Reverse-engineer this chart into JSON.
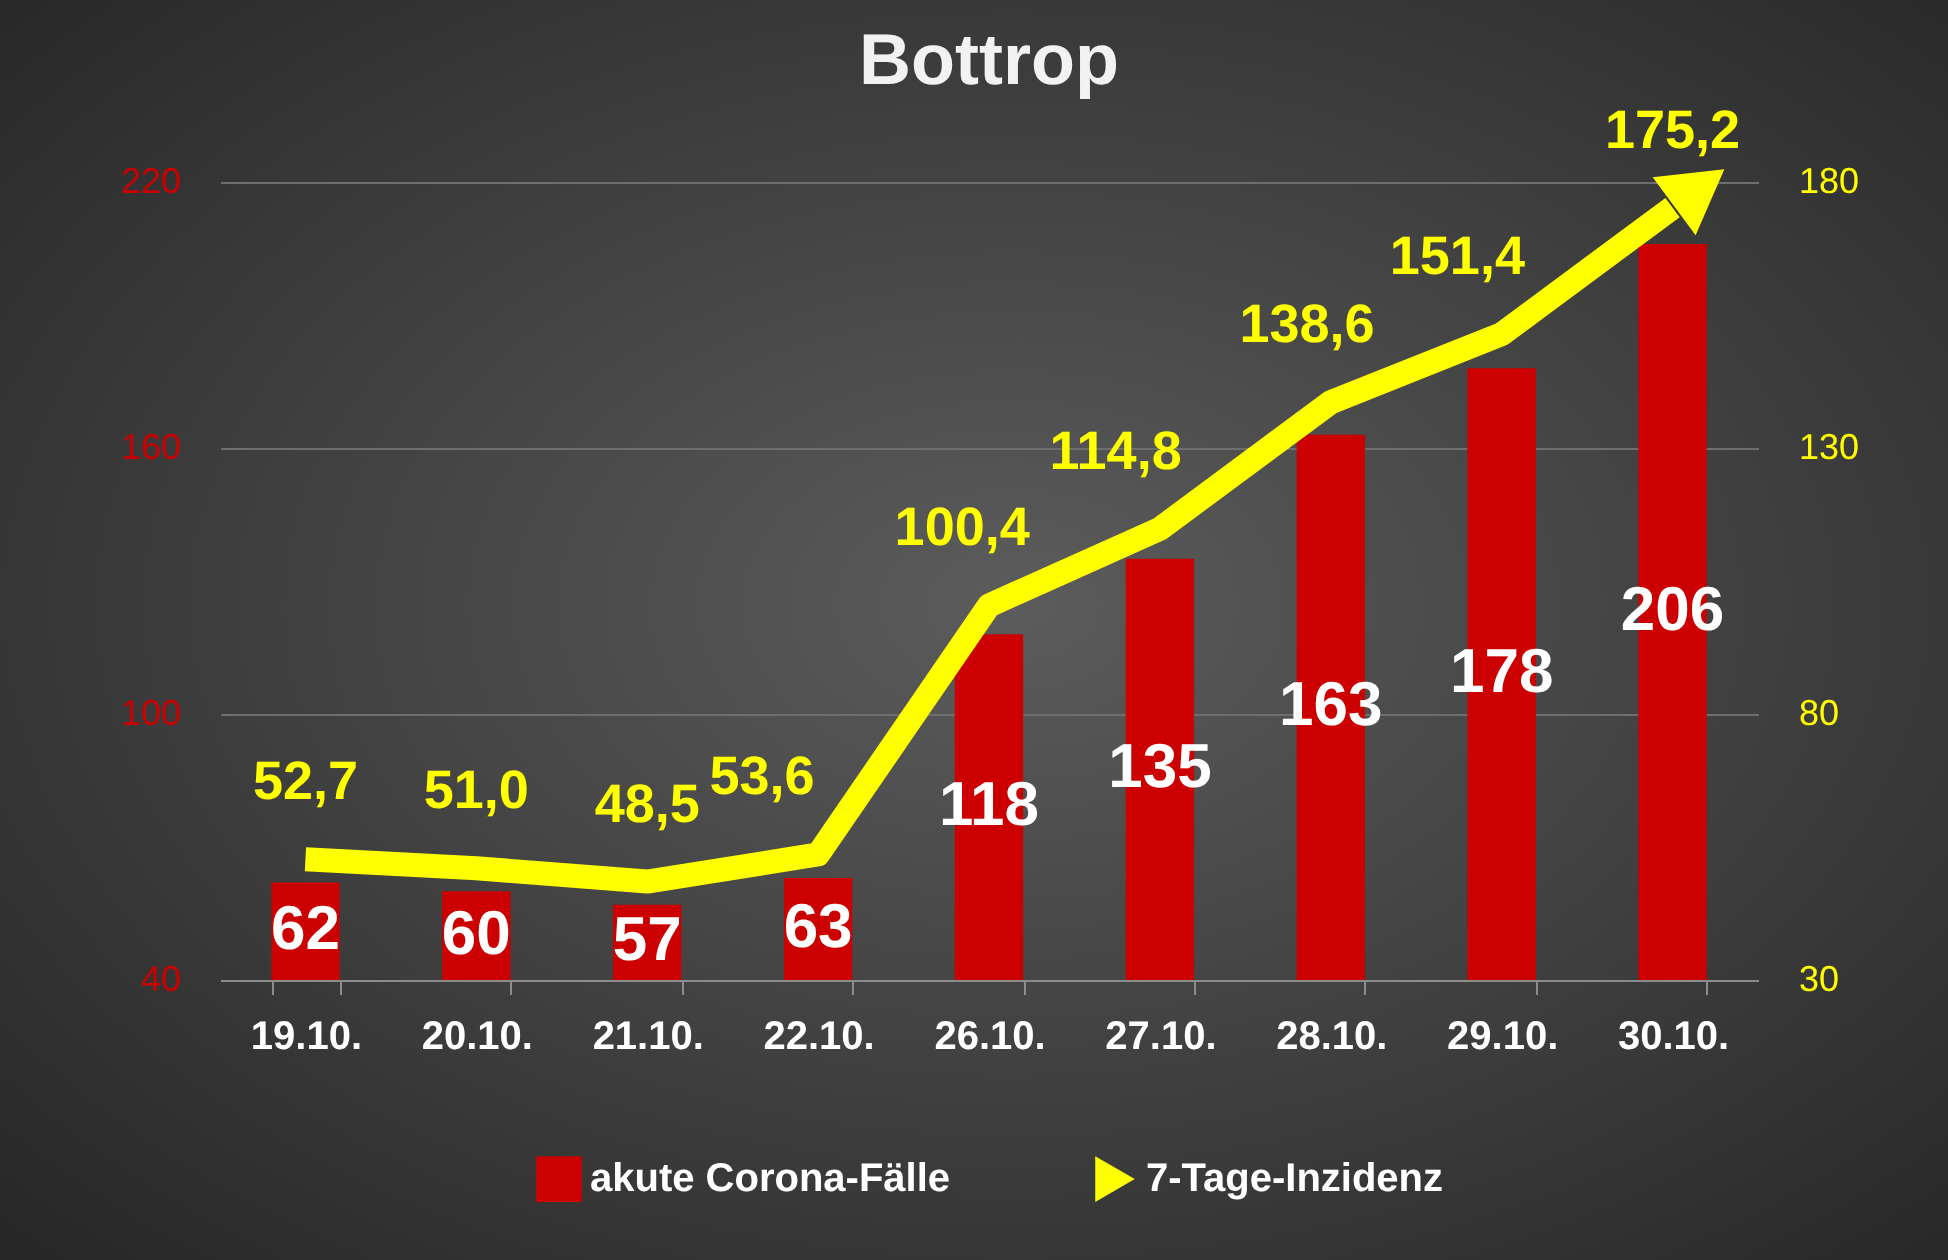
{
  "chart_data": {
    "type": "bar",
    "title": "Bottrop",
    "categories": [
      "19.10.",
      "20.10.",
      "21.10.",
      "22.10.",
      "26.10.",
      "27.10.",
      "28.10.",
      "29.10.",
      "30.10."
    ],
    "series": [
      {
        "name": "akute Corona-Fälle",
        "color": "#cc0000",
        "values": [
          62,
          60,
          57,
          63,
          118,
          135,
          163,
          178,
          206
        ],
        "value_labels": [
          "62",
          "60",
          "57",
          "63",
          "118",
          "135",
          "163",
          "178",
          "206"
        ]
      },
      {
        "name": "7-Tage-Inzidenz",
        "type": "line",
        "axis": "y2",
        "color": "#ffff00",
        "values": [
          52.7,
          51.0,
          48.5,
          53.6,
          100.4,
          114.8,
          138.6,
          151.4,
          175.2
        ],
        "value_labels": [
          "52,7",
          "51,0",
          "48,5",
          "53,6",
          "100,4",
          "114,8",
          "138,6",
          "151,4",
          "175,2"
        ]
      }
    ],
    "ylim": [
      40,
      220
    ],
    "yticks": [
      40,
      100,
      160,
      220
    ],
    "y2lim": [
      30,
      180
    ],
    "y2ticks": [
      30,
      80,
      130,
      180
    ],
    "grid": "y",
    "legend": "bottom"
  }
}
